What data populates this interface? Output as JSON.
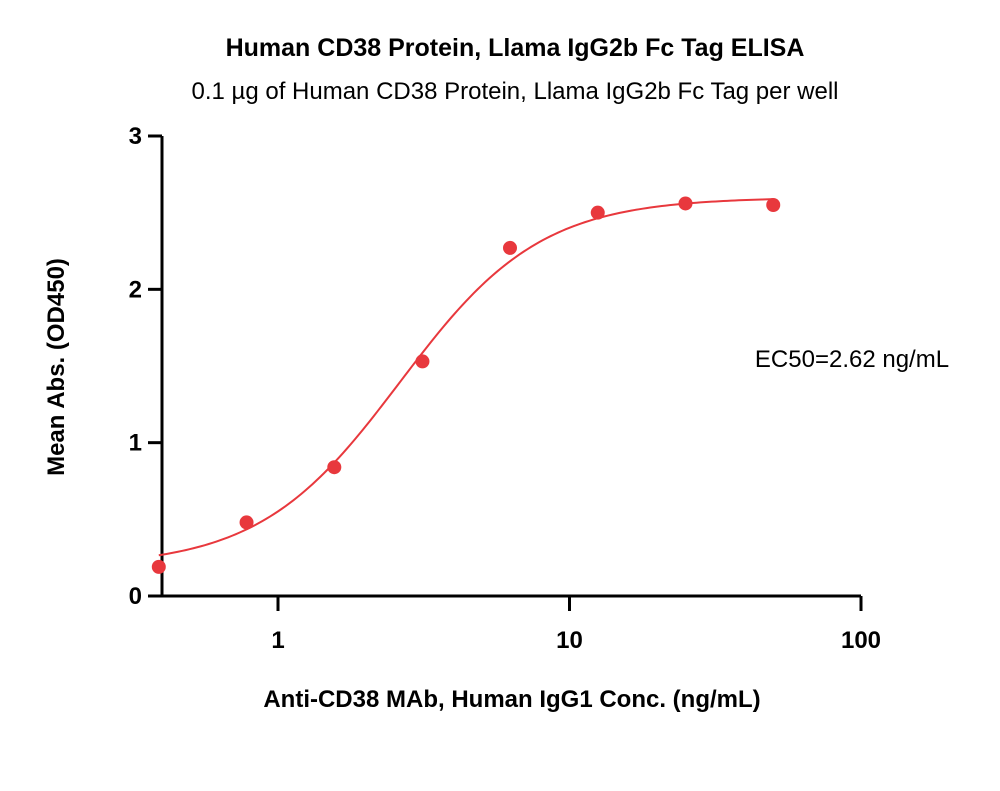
{
  "chart_data": {
    "type": "scatter",
    "title": "Human CD38 Protein, Llama IgG2b Fc Tag ELISA",
    "subtitle": "0.1 µg of Human CD38 Protein, Llama IgG2b Fc Tag per well",
    "xlabel": "Anti-CD38 MAb, Human IgG1 Conc. (ng/mL)",
    "ylabel": "Mean Abs. (OD450)",
    "xscale": "log",
    "xlim": [
      0.4,
      100
    ],
    "ylim": [
      0,
      3
    ],
    "x_ticks": [
      {
        "value": 1,
        "label": "1"
      },
      {
        "value": 10,
        "label": "10"
      },
      {
        "value": 100,
        "label": "100"
      }
    ],
    "y_ticks": [
      {
        "value": 0,
        "label": "0"
      },
      {
        "value": 1,
        "label": "1"
      },
      {
        "value": 2,
        "label": "2"
      },
      {
        "value": 3,
        "label": "3"
      }
    ],
    "grid": false,
    "series": [
      {
        "color": "#e8383d",
        "x": [
          0.39,
          0.78,
          1.56,
          3.13,
          6.25,
          12.5,
          25,
          50
        ],
        "y": [
          0.19,
          0.48,
          0.84,
          1.53,
          2.27,
          2.5,
          2.56,
          2.55
        ],
        "fit": {
          "model": "4PL",
          "bottom": 0.19,
          "top": 2.6,
          "ec50": 2.62,
          "hill": 1.8
        }
      }
    ],
    "annotations": [
      {
        "text": "EC50=2.62 ng/mL"
      }
    ]
  }
}
